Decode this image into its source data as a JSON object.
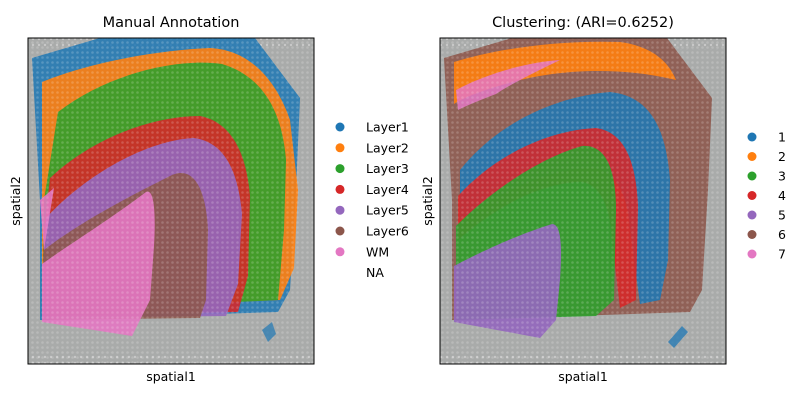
{
  "chart_data": [
    {
      "type": "scatter",
      "title": "Manual Annotation",
      "xlabel": "spatial1",
      "ylabel": "spatial2",
      "legend_location": "right",
      "legend": [
        {
          "label": "Layer1",
          "color": "#1f77b4"
        },
        {
          "label": "Layer2",
          "color": "#ff7f0e"
        },
        {
          "label": "Layer3",
          "color": "#2ca02c"
        },
        {
          "label": "Layer4",
          "color": "#d62728"
        },
        {
          "label": "Layer5",
          "color": "#9467bd"
        },
        {
          "label": "Layer6",
          "color": "#8c564b"
        },
        {
          "label": "WM",
          "color": "#e377c2"
        },
        {
          "label": "NA",
          "color": "none"
        }
      ]
    },
    {
      "type": "scatter",
      "title": "Clustering: (ARI=0.6252)",
      "xlabel": "spatial1",
      "ylabel": "spatial2",
      "legend_location": "right",
      "legend": [
        {
          "label": "1",
          "color": "#1f77b4"
        },
        {
          "label": "2",
          "color": "#ff7f0e"
        },
        {
          "label": "3",
          "color": "#2ca02c"
        },
        {
          "label": "4",
          "color": "#d62728"
        },
        {
          "label": "5",
          "color": "#9467bd"
        },
        {
          "label": "6",
          "color": "#8c564b"
        },
        {
          "label": "7",
          "color": "#e377c2"
        }
      ]
    }
  ],
  "colors": {
    "tissue_background": "#a9abaa",
    "spot_grid": "#c8c8c8",
    "axes_frame": "#000000"
  }
}
